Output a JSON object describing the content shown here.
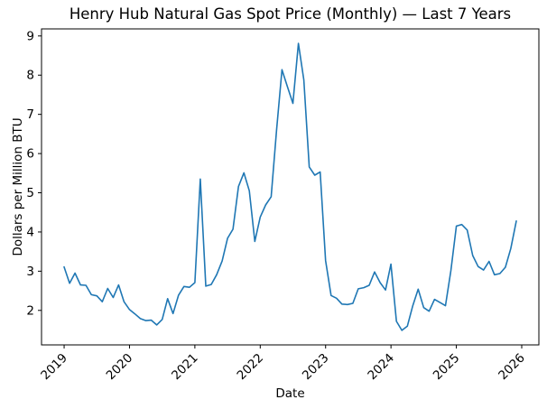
{
  "figure": {
    "title": "Henry Hub Natural Gas Spot Price (Monthly) — Last 7 Years",
    "xlabel": "Date",
    "ylabel": "Dollars per Million BTU"
  },
  "chart_data": {
    "type": "line",
    "title": "Henry Hub Natural Gas Spot Price (Monthly) — Last 7 Years",
    "xlabel": "Date",
    "ylabel": "Dollars per Million BTU",
    "grid": false,
    "legend": null,
    "line_color": "#1f77b4",
    "background_color": "#ffffff",
    "axis_color": "#000000",
    "ylim": [
      1.12,
      9.18
    ],
    "y_ticks": [
      2,
      3,
      4,
      5,
      6,
      7,
      8,
      9
    ],
    "x_tick_years": [
      "2019",
      "2020",
      "2021",
      "2022",
      "2023",
      "2024",
      "2025",
      "2026"
    ],
    "x_tick_rotation_deg": 45,
    "points": [
      [
        "2019-01",
        3.11
      ],
      [
        "2019-02",
        2.69
      ],
      [
        "2019-03",
        2.95
      ],
      [
        "2019-04",
        2.65
      ],
      [
        "2019-05",
        2.64
      ],
      [
        "2019-06",
        2.4
      ],
      [
        "2019-07",
        2.37
      ],
      [
        "2019-08",
        2.22
      ],
      [
        "2019-09",
        2.56
      ],
      [
        "2019-10",
        2.33
      ],
      [
        "2019-11",
        2.65
      ],
      [
        "2019-12",
        2.22
      ],
      [
        "2020-01",
        2.02
      ],
      [
        "2020-02",
        1.91
      ],
      [
        "2020-03",
        1.79
      ],
      [
        "2020-04",
        1.74
      ],
      [
        "2020-05",
        1.75
      ],
      [
        "2020-06",
        1.63
      ],
      [
        "2020-07",
        1.77
      ],
      [
        "2020-08",
        2.3
      ],
      [
        "2020-09",
        1.92
      ],
      [
        "2020-10",
        2.39
      ],
      [
        "2020-11",
        2.61
      ],
      [
        "2020-12",
        2.59
      ],
      [
        "2021-01",
        2.71
      ],
      [
        "2021-02",
        5.35
      ],
      [
        "2021-03",
        2.62
      ],
      [
        "2021-04",
        2.66
      ],
      [
        "2021-05",
        2.91
      ],
      [
        "2021-06",
        3.26
      ],
      [
        "2021-07",
        3.84
      ],
      [
        "2021-08",
        4.07
      ],
      [
        "2021-09",
        5.16
      ],
      [
        "2021-10",
        5.51
      ],
      [
        "2021-11",
        5.05
      ],
      [
        "2021-12",
        3.76
      ],
      [
        "2022-01",
        4.38
      ],
      [
        "2022-02",
        4.69
      ],
      [
        "2022-03",
        4.9
      ],
      [
        "2022-04",
        6.6
      ],
      [
        "2022-05",
        8.14
      ],
      [
        "2022-06",
        7.7
      ],
      [
        "2022-07",
        7.28
      ],
      [
        "2022-08",
        8.81
      ],
      [
        "2022-09",
        7.88
      ],
      [
        "2022-10",
        5.66
      ],
      [
        "2022-11",
        5.45
      ],
      [
        "2022-12",
        5.53
      ],
      [
        "2023-01",
        3.27
      ],
      [
        "2023-02",
        2.38
      ],
      [
        "2023-03",
        2.31
      ],
      [
        "2023-04",
        2.16
      ],
      [
        "2023-05",
        2.15
      ],
      [
        "2023-06",
        2.18
      ],
      [
        "2023-07",
        2.55
      ],
      [
        "2023-08",
        2.58
      ],
      [
        "2023-09",
        2.64
      ],
      [
        "2023-10",
        2.98
      ],
      [
        "2023-11",
        2.71
      ],
      [
        "2023-12",
        2.52
      ],
      [
        "2024-01",
        3.18
      ],
      [
        "2024-02",
        1.72
      ],
      [
        "2024-03",
        1.49
      ],
      [
        "2024-04",
        1.6
      ],
      [
        "2024-05",
        2.12
      ],
      [
        "2024-06",
        2.54
      ],
      [
        "2024-07",
        2.07
      ],
      [
        "2024-08",
        1.98
      ],
      [
        "2024-09",
        2.28
      ],
      [
        "2024-10",
        2.2
      ],
      [
        "2024-11",
        2.12
      ],
      [
        "2024-12",
        3.01
      ],
      [
        "2025-01",
        4.15
      ],
      [
        "2025-02",
        4.19
      ],
      [
        "2025-03",
        4.05
      ],
      [
        "2025-04",
        3.4
      ],
      [
        "2025-05",
        3.12
      ],
      [
        "2025-06",
        3.03
      ],
      [
        "2025-07",
        3.25
      ],
      [
        "2025-08",
        2.91
      ],
      [
        "2025-09",
        2.94
      ],
      [
        "2025-10",
        3.1
      ],
      [
        "2025-11",
        3.58
      ],
      [
        "2025-12",
        4.28
      ]
    ]
  }
}
